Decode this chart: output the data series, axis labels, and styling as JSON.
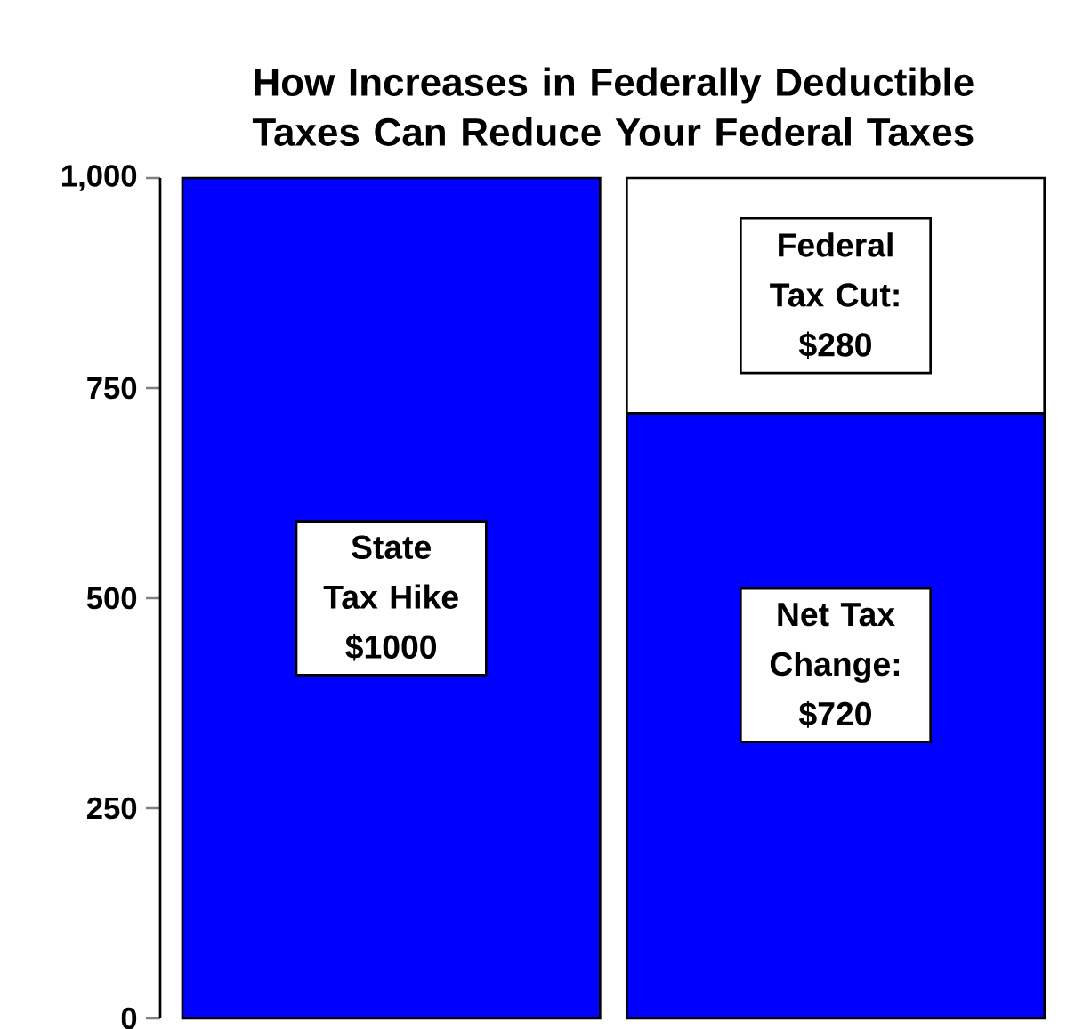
{
  "chart_data": {
    "type": "bar",
    "title": "How Increases in Federally Deductible Taxes Can Reduce Your Federal Taxes",
    "categories": [
      null,
      null
    ],
    "stacked": true,
    "series": [
      {
        "color": "#0000ff",
        "values": [
          1000,
          720
        ]
      },
      {
        "color": "#ffffff",
        "values": [
          null,
          280
        ]
      }
    ],
    "ylim": [
      0,
      1000
    ],
    "yticks": [
      0,
      250,
      500,
      750,
      {
        "value": 1000,
        "label": "1,000"
      }
    ],
    "annotations": [
      "State Tax Hike $1000",
      "Federal Tax Cut: $280",
      "Net Tax Change: $720"
    ]
  }
}
